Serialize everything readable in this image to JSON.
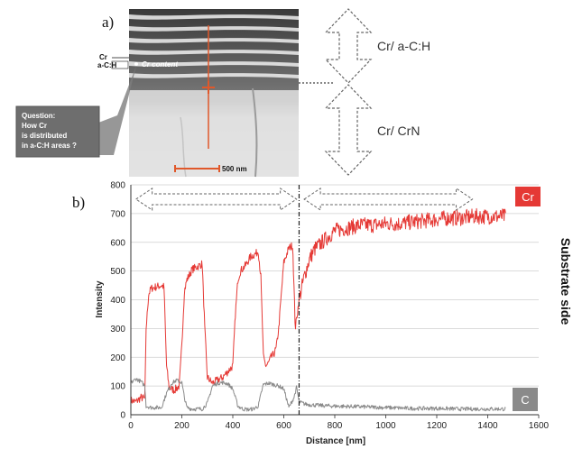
{
  "panel_a": {
    "label": "a)",
    "scale_bar": "500 nm",
    "cr_label": "Cr",
    "ach_label": "a-C:H",
    "cr_content_label": "Cr content",
    "question": [
      "Question:",
      "How Cr",
      "is distributed",
      "in a-C:H areas ?"
    ],
    "layer_top": "Cr/ a-C:H",
    "layer_bottom": "Cr/ CrN"
  },
  "panel_b": {
    "label": "b)",
    "side_label": "Substrate side"
  },
  "colors": {
    "cr": "#e53935",
    "c": "#8a8a8a",
    "tag_cr": "#e53935",
    "tag_c": "#8a8a8a"
  },
  "chart_data": {
    "type": "line",
    "xlabel": "Distance [nm]",
    "ylabel": "Intensity",
    "xlim": [
      0,
      1600
    ],
    "ylim": [
      0,
      800
    ],
    "xticks": [
      0,
      200,
      400,
      600,
      800,
      1000,
      1200,
      1400,
      1600
    ],
    "yticks": [
      0,
      100,
      200,
      300,
      400,
      500,
      600,
      700,
      800
    ],
    "grid": true,
    "interface_x": 660,
    "series": [
      {
        "name": "Cr",
        "x": [
          0,
          20,
          40,
          55,
          60,
          70,
          80,
          100,
          120,
          130,
          140,
          150,
          170,
          190,
          200,
          210,
          220,
          240,
          260,
          280,
          290,
          300,
          320,
          340,
          360,
          380,
          400,
          410,
          420,
          430,
          450,
          470,
          490,
          500,
          510,
          520,
          530,
          540,
          550,
          560,
          570,
          580,
          600,
          620,
          635,
          645,
          660,
          680,
          700,
          720,
          750,
          800,
          850,
          900,
          950,
          1000,
          1050,
          1100,
          1150,
          1200,
          1250,
          1300,
          1350,
          1400,
          1450,
          1470
        ],
        "values": [
          50,
          45,
          60,
          55,
          300,
          420,
          440,
          445,
          450,
          445,
          170,
          95,
          85,
          100,
          240,
          430,
          470,
          505,
          515,
          525,
          300,
          130,
          110,
          120,
          130,
          150,
          170,
          350,
          470,
          500,
          520,
          550,
          560,
          570,
          480,
          200,
          170,
          180,
          200,
          210,
          230,
          300,
          530,
          580,
          590,
          300,
          400,
          480,
          540,
          575,
          600,
          640,
          650,
          660,
          660,
          665,
          665,
          670,
          675,
          680,
          685,
          685,
          690,
          690,
          690,
          690
        ]
      },
      {
        "name": "C",
        "x": [
          0,
          20,
          40,
          55,
          60,
          80,
          100,
          120,
          140,
          160,
          180,
          200,
          210,
          220,
          240,
          260,
          280,
          300,
          320,
          340,
          360,
          380,
          400,
          420,
          440,
          460,
          480,
          500,
          510,
          520,
          540,
          560,
          580,
          600,
          620,
          640,
          650,
          660,
          680,
          700,
          750,
          800,
          900,
          1000,
          1100,
          1200,
          1300,
          1400,
          1470
        ],
        "values": [
          110,
          125,
          115,
          100,
          30,
          25,
          25,
          25,
          75,
          110,
          120,
          112,
          60,
          25,
          20,
          20,
          20,
          40,
          100,
          110,
          112,
          108,
          90,
          30,
          20,
          18,
          20,
          30,
          70,
          105,
          110,
          105,
          100,
          90,
          25,
          60,
          95,
          45,
          38,
          35,
          32,
          30,
          28,
          25,
          22,
          22,
          20,
          20,
          20
        ]
      }
    ]
  }
}
